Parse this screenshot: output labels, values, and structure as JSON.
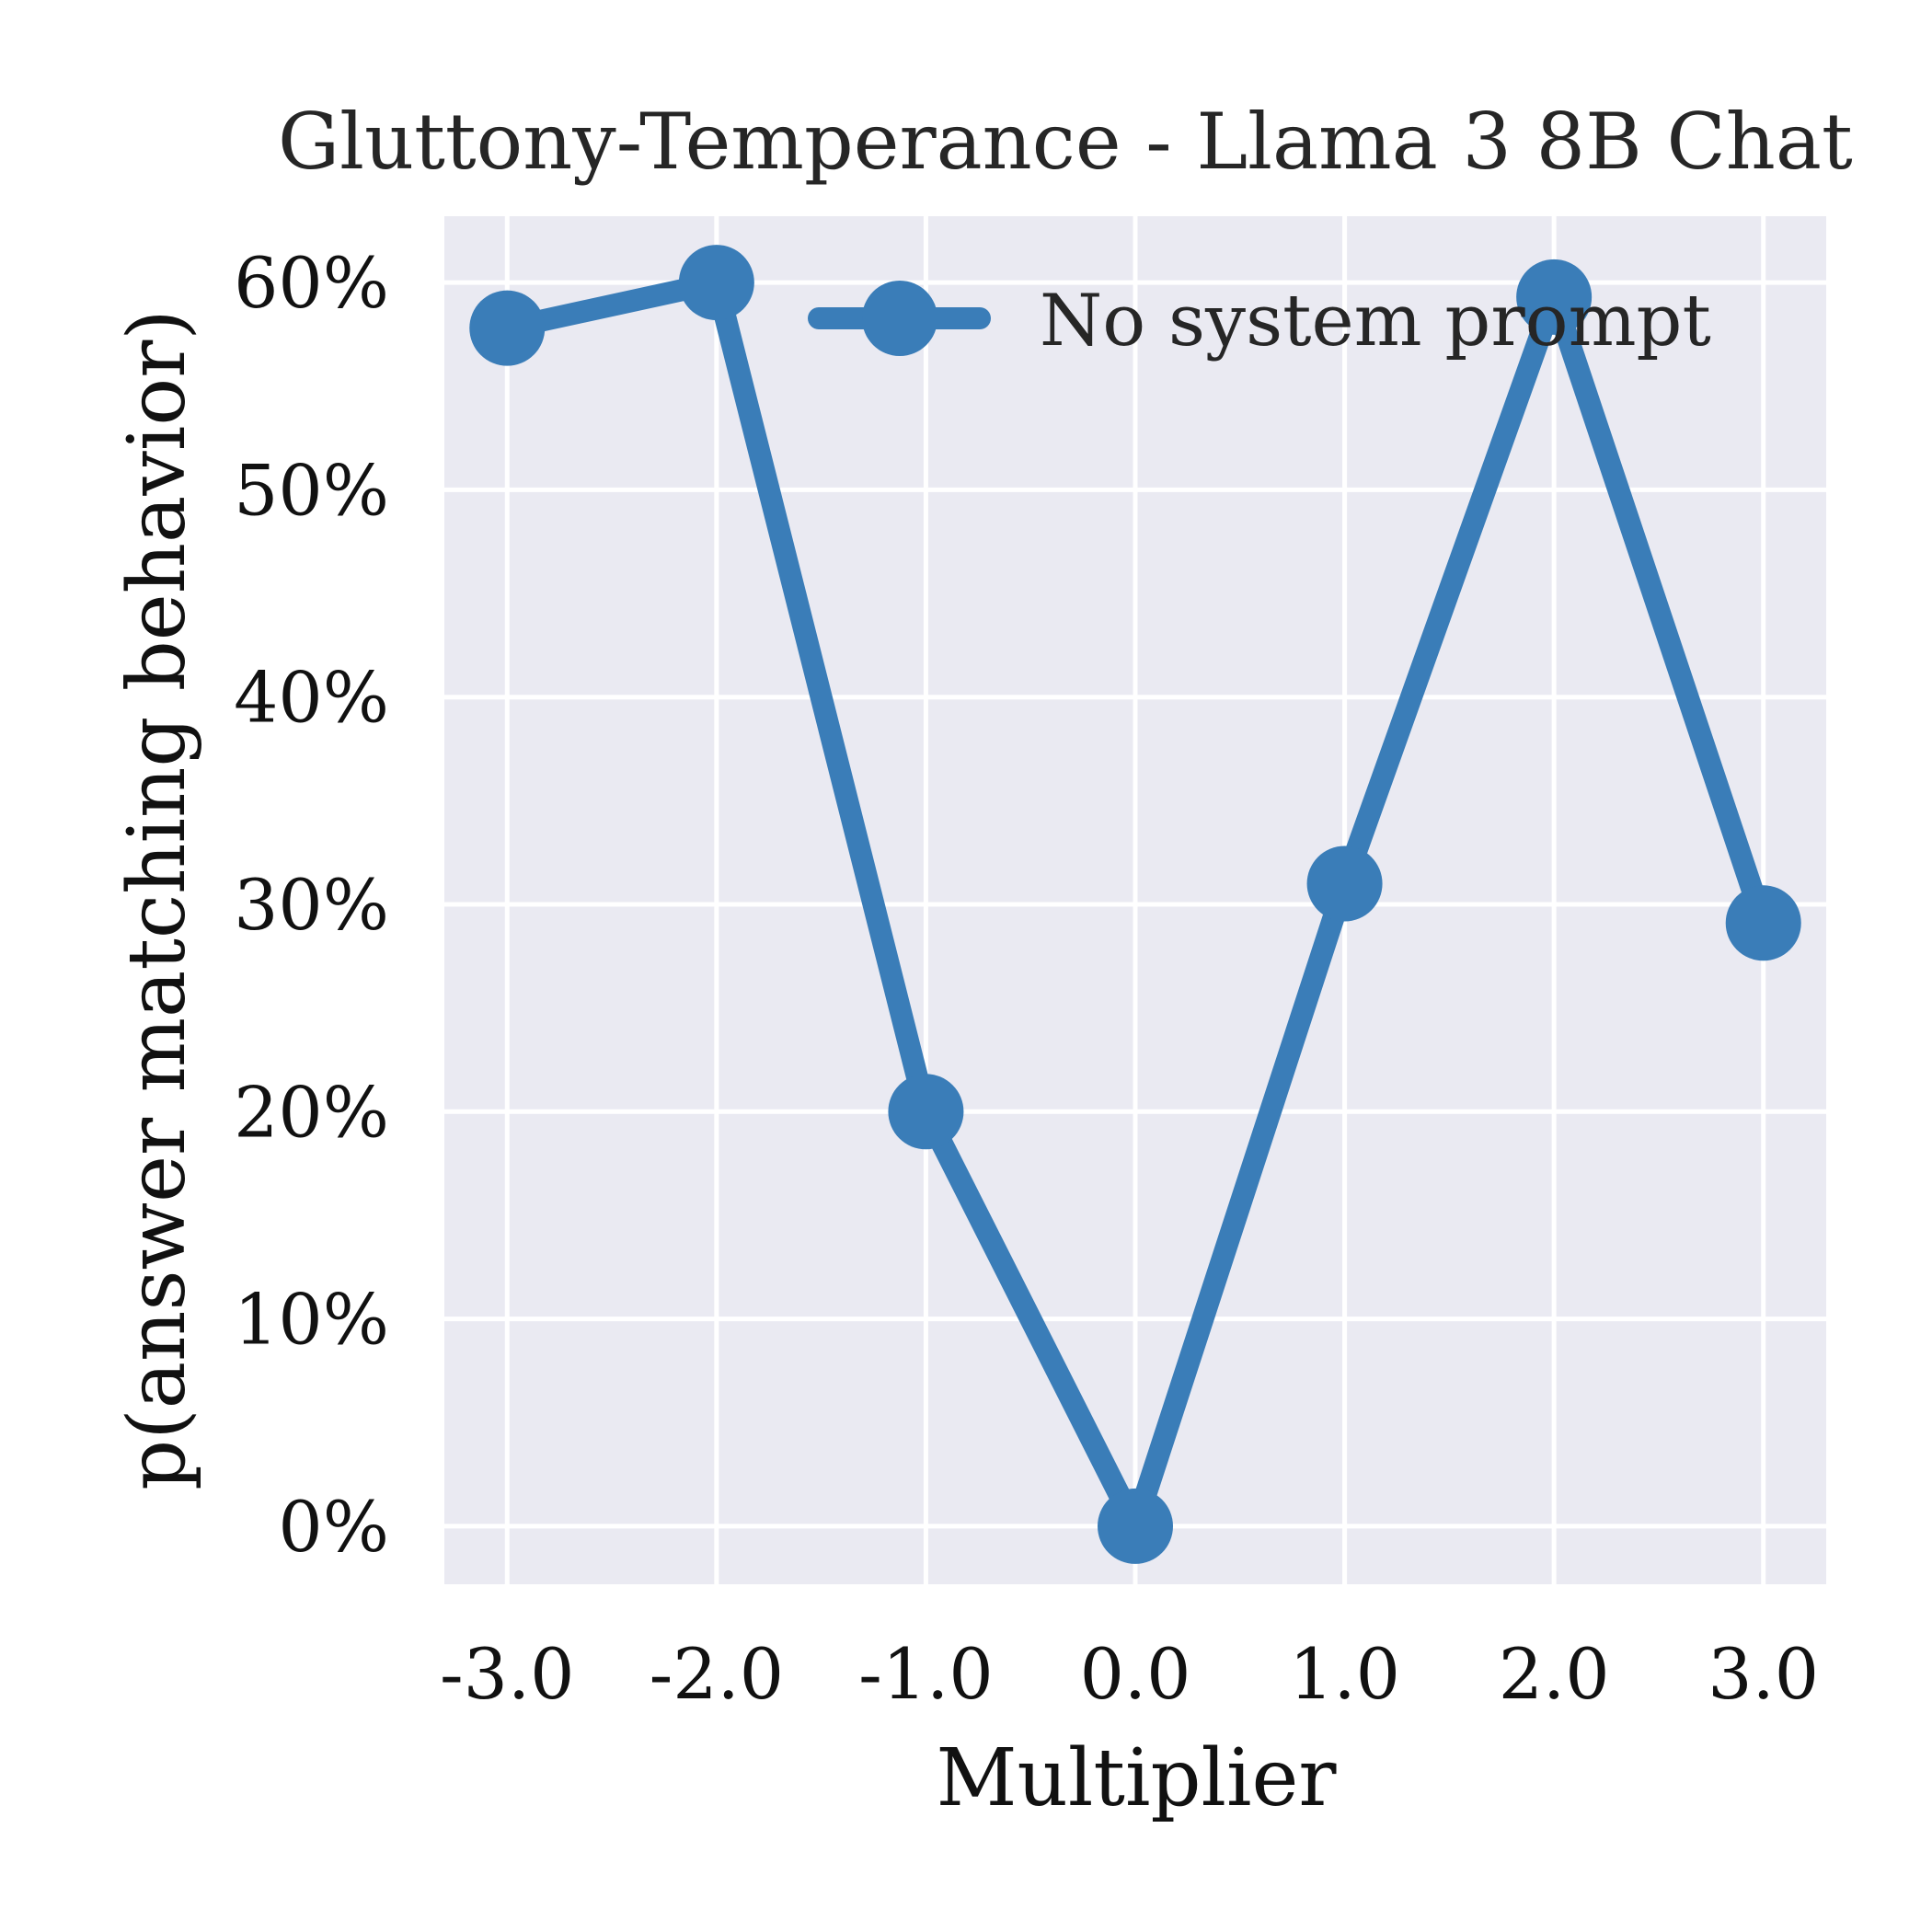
{
  "chart_data": {
    "type": "line",
    "title": "Gluttony-Temperance - Llama 3 8B Chat",
    "xlabel": "Multiplier",
    "ylabel": "p(answer matching behavior)",
    "x": [
      -3.0,
      -2.0,
      -1.0,
      0.0,
      1.0,
      2.0,
      3.0
    ],
    "x_tick_labels": [
      "-3.0",
      "-2.0",
      "-1.0",
      "0.0",
      "1.0",
      "2.0",
      "3.0"
    ],
    "y_ticks": [
      0,
      10,
      20,
      30,
      40,
      50,
      60
    ],
    "y_tick_labels": [
      "0%",
      "10%",
      "20%",
      "30%",
      "40%",
      "50%",
      "60%"
    ],
    "xlim": [
      -3.3,
      3.3
    ],
    "ylim": [
      -2.8,
      63.2
    ],
    "grid": true,
    "legend_position": "top-right",
    "series": [
      {
        "name": "No system prompt",
        "color": "#3a7db8",
        "values": [
          57.8,
          60.0,
          20.0,
          0.0,
          31.0,
          59.3,
          29.1
        ]
      }
    ]
  },
  "colors": {
    "plot_background": "#eaeaf2",
    "grid": "#ffffff"
  }
}
